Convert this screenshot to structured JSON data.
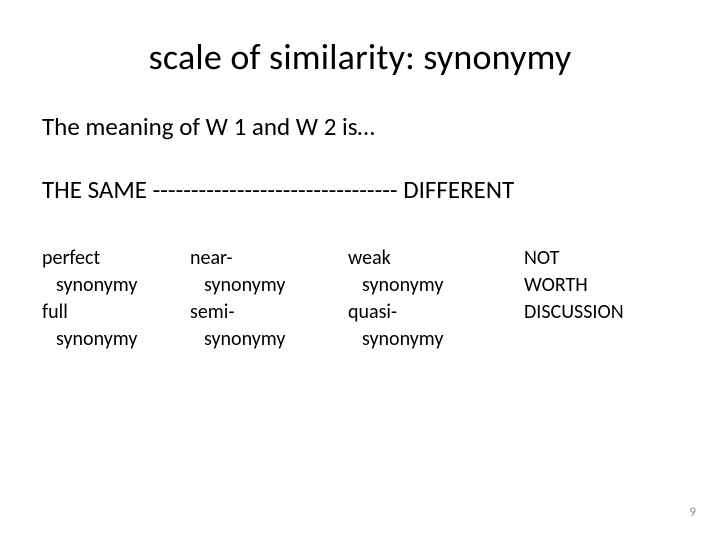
{
  "title": "scale of similarity: synonymy",
  "subtitle": "The meaning of W 1 and W 2 is…",
  "scale": {
    "left": "THE SAME",
    "dashes": "--------------------------------",
    "right": "DIFFERENT"
  },
  "columns": {
    "col1": {
      "line1": "perfect",
      "line2": "synonymy",
      "line3": "full",
      "line4": "synonymy"
    },
    "col2": {
      "line1": "near-",
      "line2": "synonymy",
      "line3": "semi-",
      "line4": "synonymy"
    },
    "col3": {
      "line1": "weak",
      "line2": "synonymy",
      "line3": "quasi-",
      "line4": "synonymy"
    },
    "col4": {
      "line1": "NOT",
      "line2": "WORTH",
      "line3": "DISCUSSION"
    }
  },
  "pageNumber": "9"
}
